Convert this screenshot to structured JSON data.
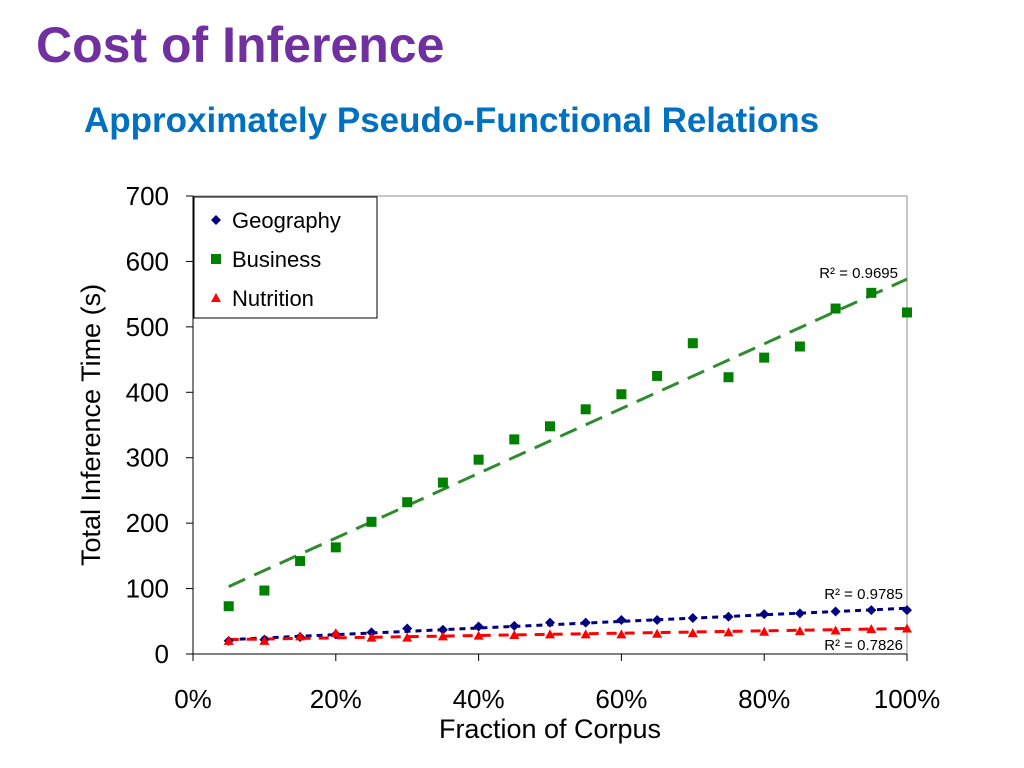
{
  "slide": {
    "title": "Cost of Inference",
    "subtitle": "Approximately Pseudo-Functional Relations"
  },
  "colors": {
    "title": "#7030A0",
    "subtitle": "#0070C0",
    "geography": "#000080",
    "business": "#008000",
    "nutrition": "#FF0000",
    "trendline_business": "#2E8B2E"
  },
  "chart_data": {
    "type": "scatter",
    "xlabel": "Fraction of Corpus",
    "ylabel": "Total Inference Time (s)",
    "xlim": [
      0,
      1
    ],
    "ylim": [
      0,
      700
    ],
    "x_ticks": [
      "0%",
      "20%",
      "40%",
      "60%",
      "80%",
      "100%"
    ],
    "y_ticks": [
      "0",
      "100",
      "200",
      "300",
      "400",
      "500",
      "600",
      "700"
    ],
    "grid": false,
    "legend_position": "top-left",
    "x": [
      0.05,
      0.1,
      0.15,
      0.2,
      0.25,
      0.3,
      0.35,
      0.4,
      0.45,
      0.5,
      0.55,
      0.6,
      0.65,
      0.7,
      0.75,
      0.8,
      0.85,
      0.9,
      0.95,
      1.0
    ],
    "series": [
      {
        "name": "Geography",
        "marker": "diamond",
        "color": "#000080",
        "values": [
          20,
          22,
          26,
          30,
          33,
          39,
          37,
          42,
          43,
          48,
          48,
          52,
          52,
          55,
          57,
          61,
          62,
          65,
          67,
          67
        ],
        "trendline": {
          "from": [
            0.05,
            22
          ],
          "to": [
            1.0,
            70
          ]
        },
        "r2_label": "R² = 0.9785"
      },
      {
        "name": "Business",
        "marker": "square",
        "color": "#008000",
        "values": [
          73,
          97,
          142,
          163,
          202,
          232,
          262,
          297,
          328,
          348,
          374,
          397,
          425,
          475,
          423,
          453,
          470,
          528,
          552,
          522
        ],
        "trendline": {
          "from": [
            0.05,
            103
          ],
          "to": [
            1.0,
            573
          ]
        },
        "r2_label": "R² = 0.9695"
      },
      {
        "name": "Nutrition",
        "marker": "triangle",
        "color": "#FF0000",
        "values": [
          20,
          20,
          27,
          32,
          25,
          25,
          27,
          28,
          29,
          30,
          30,
          30,
          31,
          32,
          33,
          34,
          35,
          36,
          38,
          39
        ],
        "trendline": {
          "from": [
            0.05,
            22
          ],
          "to": [
            1.0,
            39
          ]
        },
        "r2_label": "R² = 0.7826"
      }
    ]
  }
}
